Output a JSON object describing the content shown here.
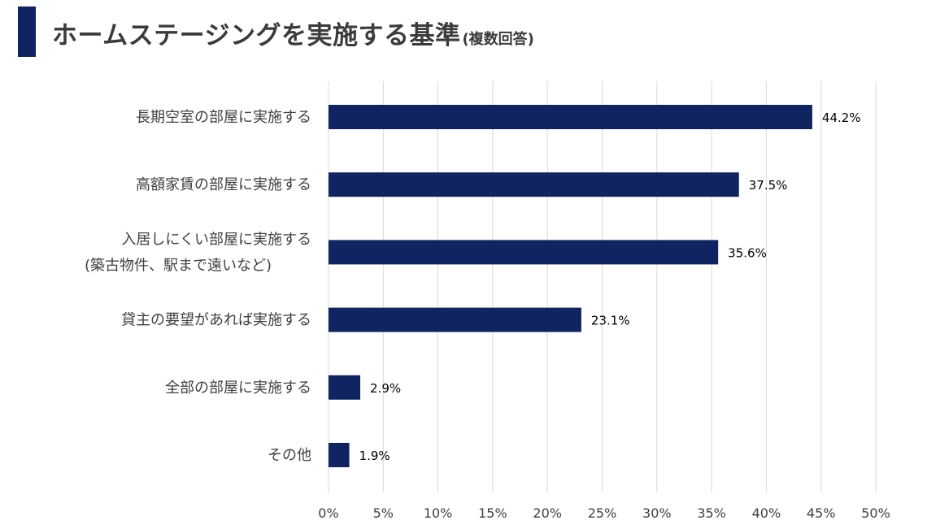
{
  "title": {
    "main": "ホームステージングを実施する基準",
    "sub": "(複数回答)",
    "accent_color": "#0f2461"
  },
  "chart_data": {
    "type": "bar",
    "orientation": "horizontal",
    "categories": [
      [
        "長期空室の部屋に実施する"
      ],
      [
        "高額家賃の部屋に実施する"
      ],
      [
        "入居しにくい部屋に実施する",
        "(築古物件、駅まで遠いなど)"
      ],
      [
        "貸主の要望があれば実施する"
      ],
      [
        "全部の部屋に実施する"
      ],
      [
        "その他"
      ]
    ],
    "values": [
      44.2,
      37.5,
      35.6,
      23.1,
      2.9,
      1.9
    ],
    "data_labels": [
      "44.2%",
      "37.5%",
      "35.6%",
      "23.1%",
      "2.9%",
      "1.9%"
    ],
    "xlim": [
      0,
      50
    ],
    "xticks": [
      0,
      5,
      10,
      15,
      20,
      25,
      30,
      35,
      40,
      45,
      50
    ],
    "xtick_labels": [
      "0%",
      "5%",
      "10%",
      "15%",
      "20%",
      "25%",
      "30%",
      "35%",
      "40%",
      "45%",
      "50%"
    ],
    "grid": "vertical",
    "bar_color": "#0f2461",
    "grid_color": "#d9d9d9",
    "text_color": "#404040",
    "label_color": "#000000"
  }
}
